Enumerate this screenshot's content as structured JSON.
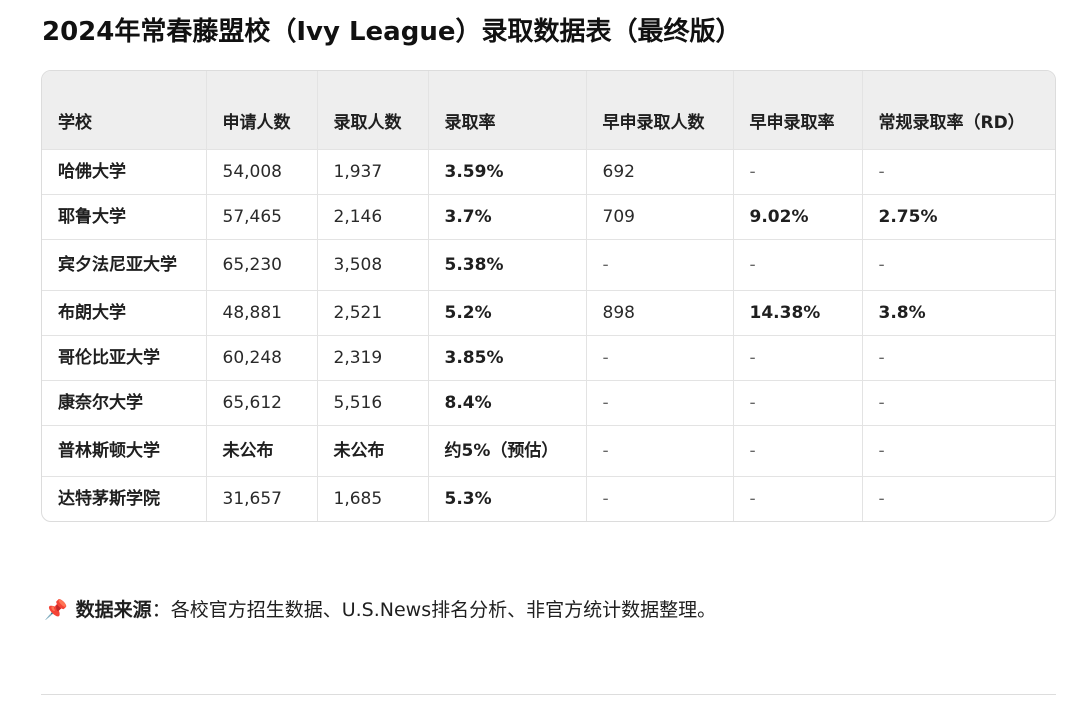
{
  "title": "2024年常春藤盟校（Ivy League）录取数据表（最终版）",
  "table": {
    "headers": [
      "学校",
      "申请人数",
      "录取人数",
      "录取率",
      "早申录取人数",
      "早申录取率",
      "常规录取率（RD）"
    ],
    "rows": [
      [
        "哈佛大学",
        "54,008",
        "1,937",
        "3.59%",
        "692",
        "-",
        "-"
      ],
      [
        "耶鲁大学",
        "57,465",
        "2,146",
        "3.7%",
        "709",
        "9.02%",
        "2.75%"
      ],
      [
        "宾夕法尼亚大学",
        "65,230",
        "3,508",
        "5.38%",
        "-",
        "-",
        "-"
      ],
      [
        "布朗大学",
        "48,881",
        "2,521",
        "5.2%",
        "898",
        "14.38%",
        "3.8%"
      ],
      [
        "哥伦比亚大学",
        "60,248",
        "2,319",
        "3.85%",
        "-",
        "-",
        "-"
      ],
      [
        "康奈尔大学",
        "65,612",
        "5,516",
        "8.4%",
        "-",
        "-",
        "-"
      ],
      [
        "普林斯顿大学",
        "未公布",
        "未公布",
        "约5%（预估）",
        "-",
        "-",
        "-"
      ],
      [
        "达特茅斯学院",
        "31,657",
        "1,685",
        "5.3%",
        "-",
        "-",
        "-"
      ]
    ]
  },
  "source": {
    "icon": "pushpin-icon",
    "label": "数据来源",
    "separator": "：",
    "text": "各校官方招生数据、U.S.News排名分析、非官方统计数据整理。"
  }
}
